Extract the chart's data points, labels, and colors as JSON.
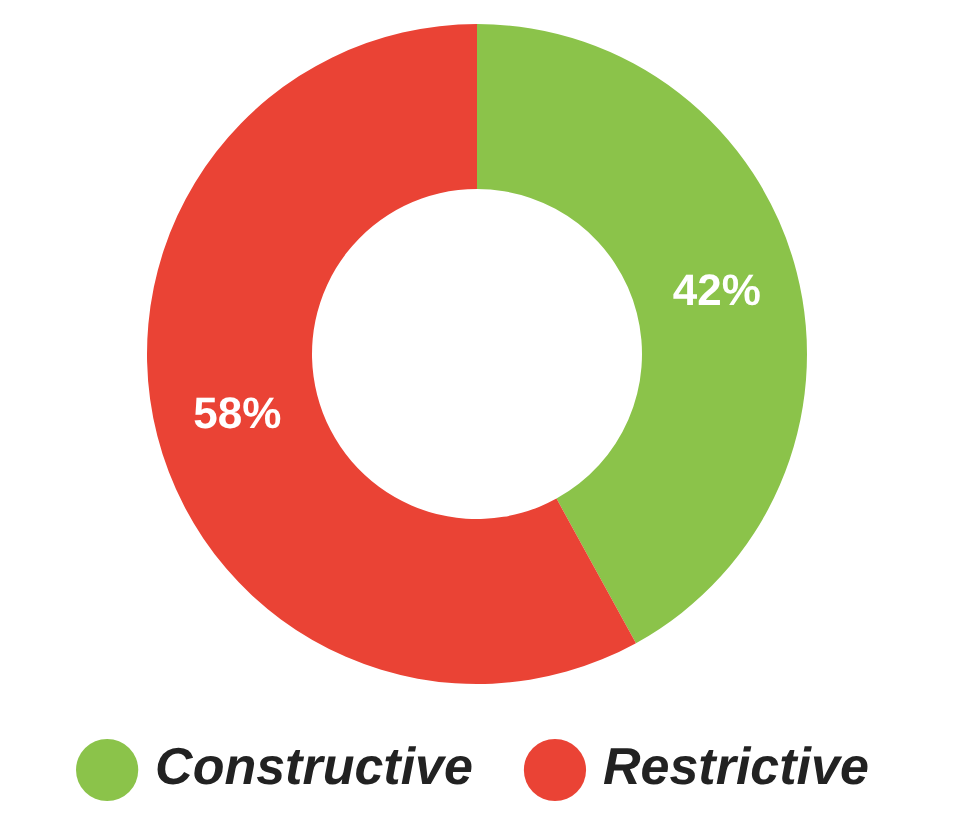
{
  "chart_data": {
    "type": "donut",
    "categories": [
      "Constructive",
      "Restrictive"
    ],
    "values": [
      42,
      58
    ],
    "colors": [
      "#8bc34a",
      "#ea4335"
    ],
    "value_labels": [
      "42%",
      "58%"
    ],
    "legend": "bottom"
  }
}
